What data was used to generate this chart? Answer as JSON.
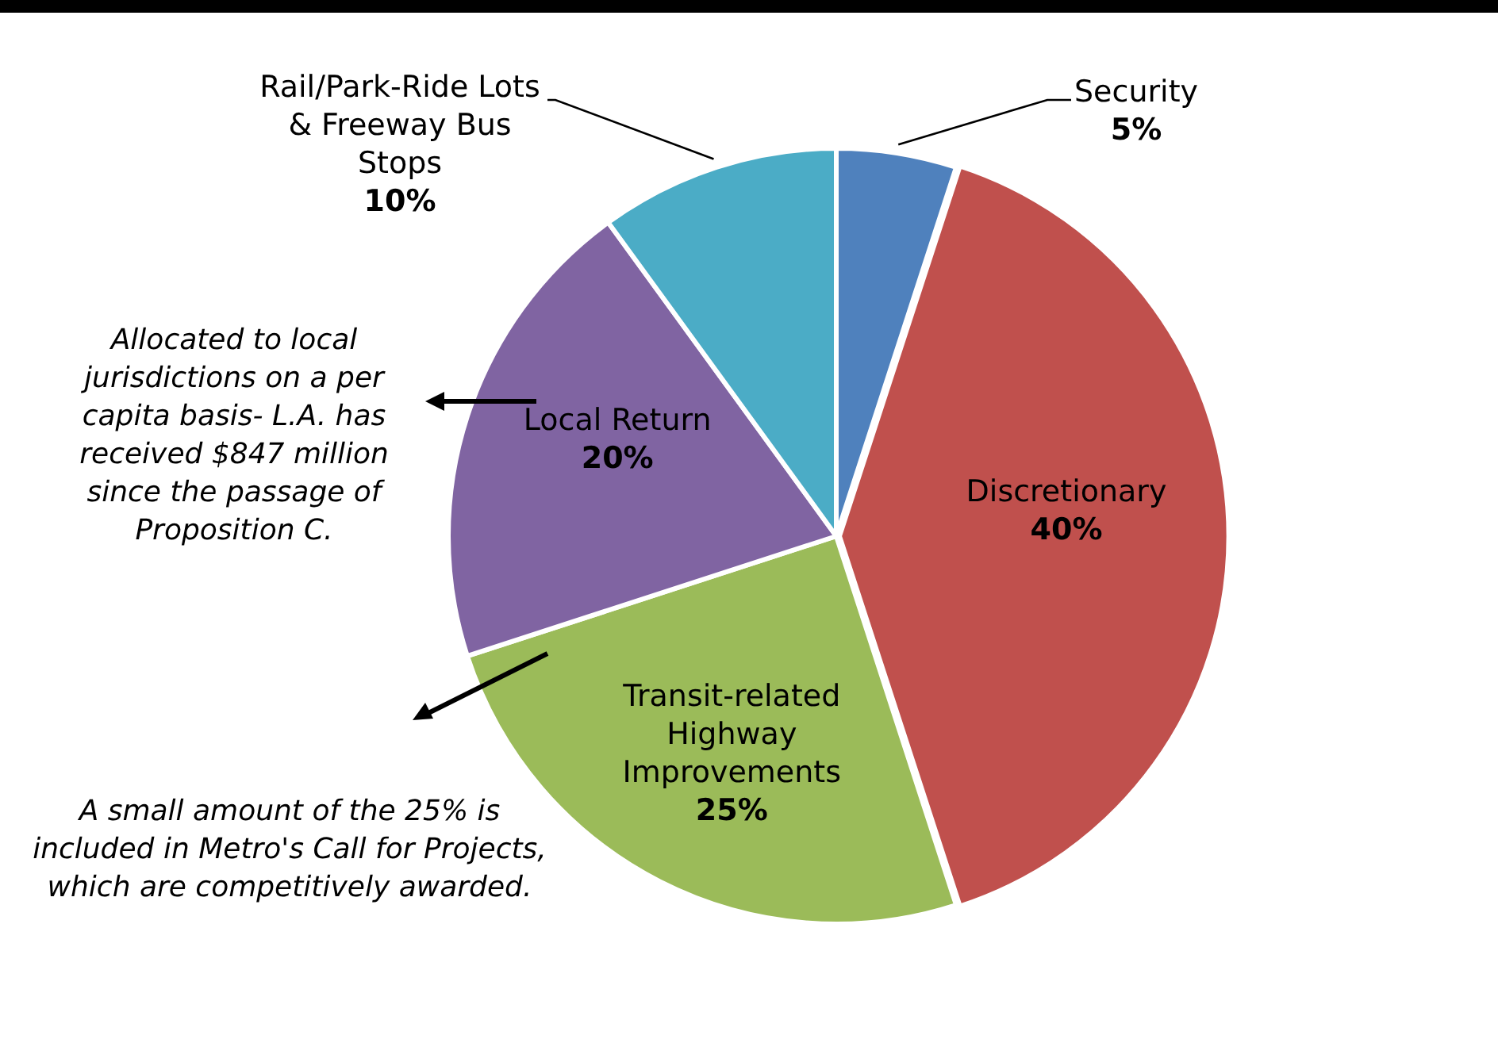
{
  "chart_data": {
    "type": "pie",
    "categories": [
      "Security",
      "Discretionary",
      "Transit-related Highway Improvements",
      "Local Return",
      "Rail/Park-Ride Lots & Freeway Bus Stops"
    ],
    "values": [
      5,
      40,
      25,
      20,
      10
    ],
    "value_labels": [
      "5%",
      "40%",
      "25%",
      "20%",
      "10%"
    ],
    "colors": [
      "#4f81bd",
      "#c0504d",
      "#9bbb59",
      "#8064a2",
      "#4bacc6"
    ],
    "legend": false,
    "annotations": [
      "Allocated to local jurisdictions on a per capita basis- L.A. has received $847 million since the passage of Proposition C.",
      "A small amount of the 25% is included in Metro's Call for Projects, which are competitively awarded."
    ]
  }
}
